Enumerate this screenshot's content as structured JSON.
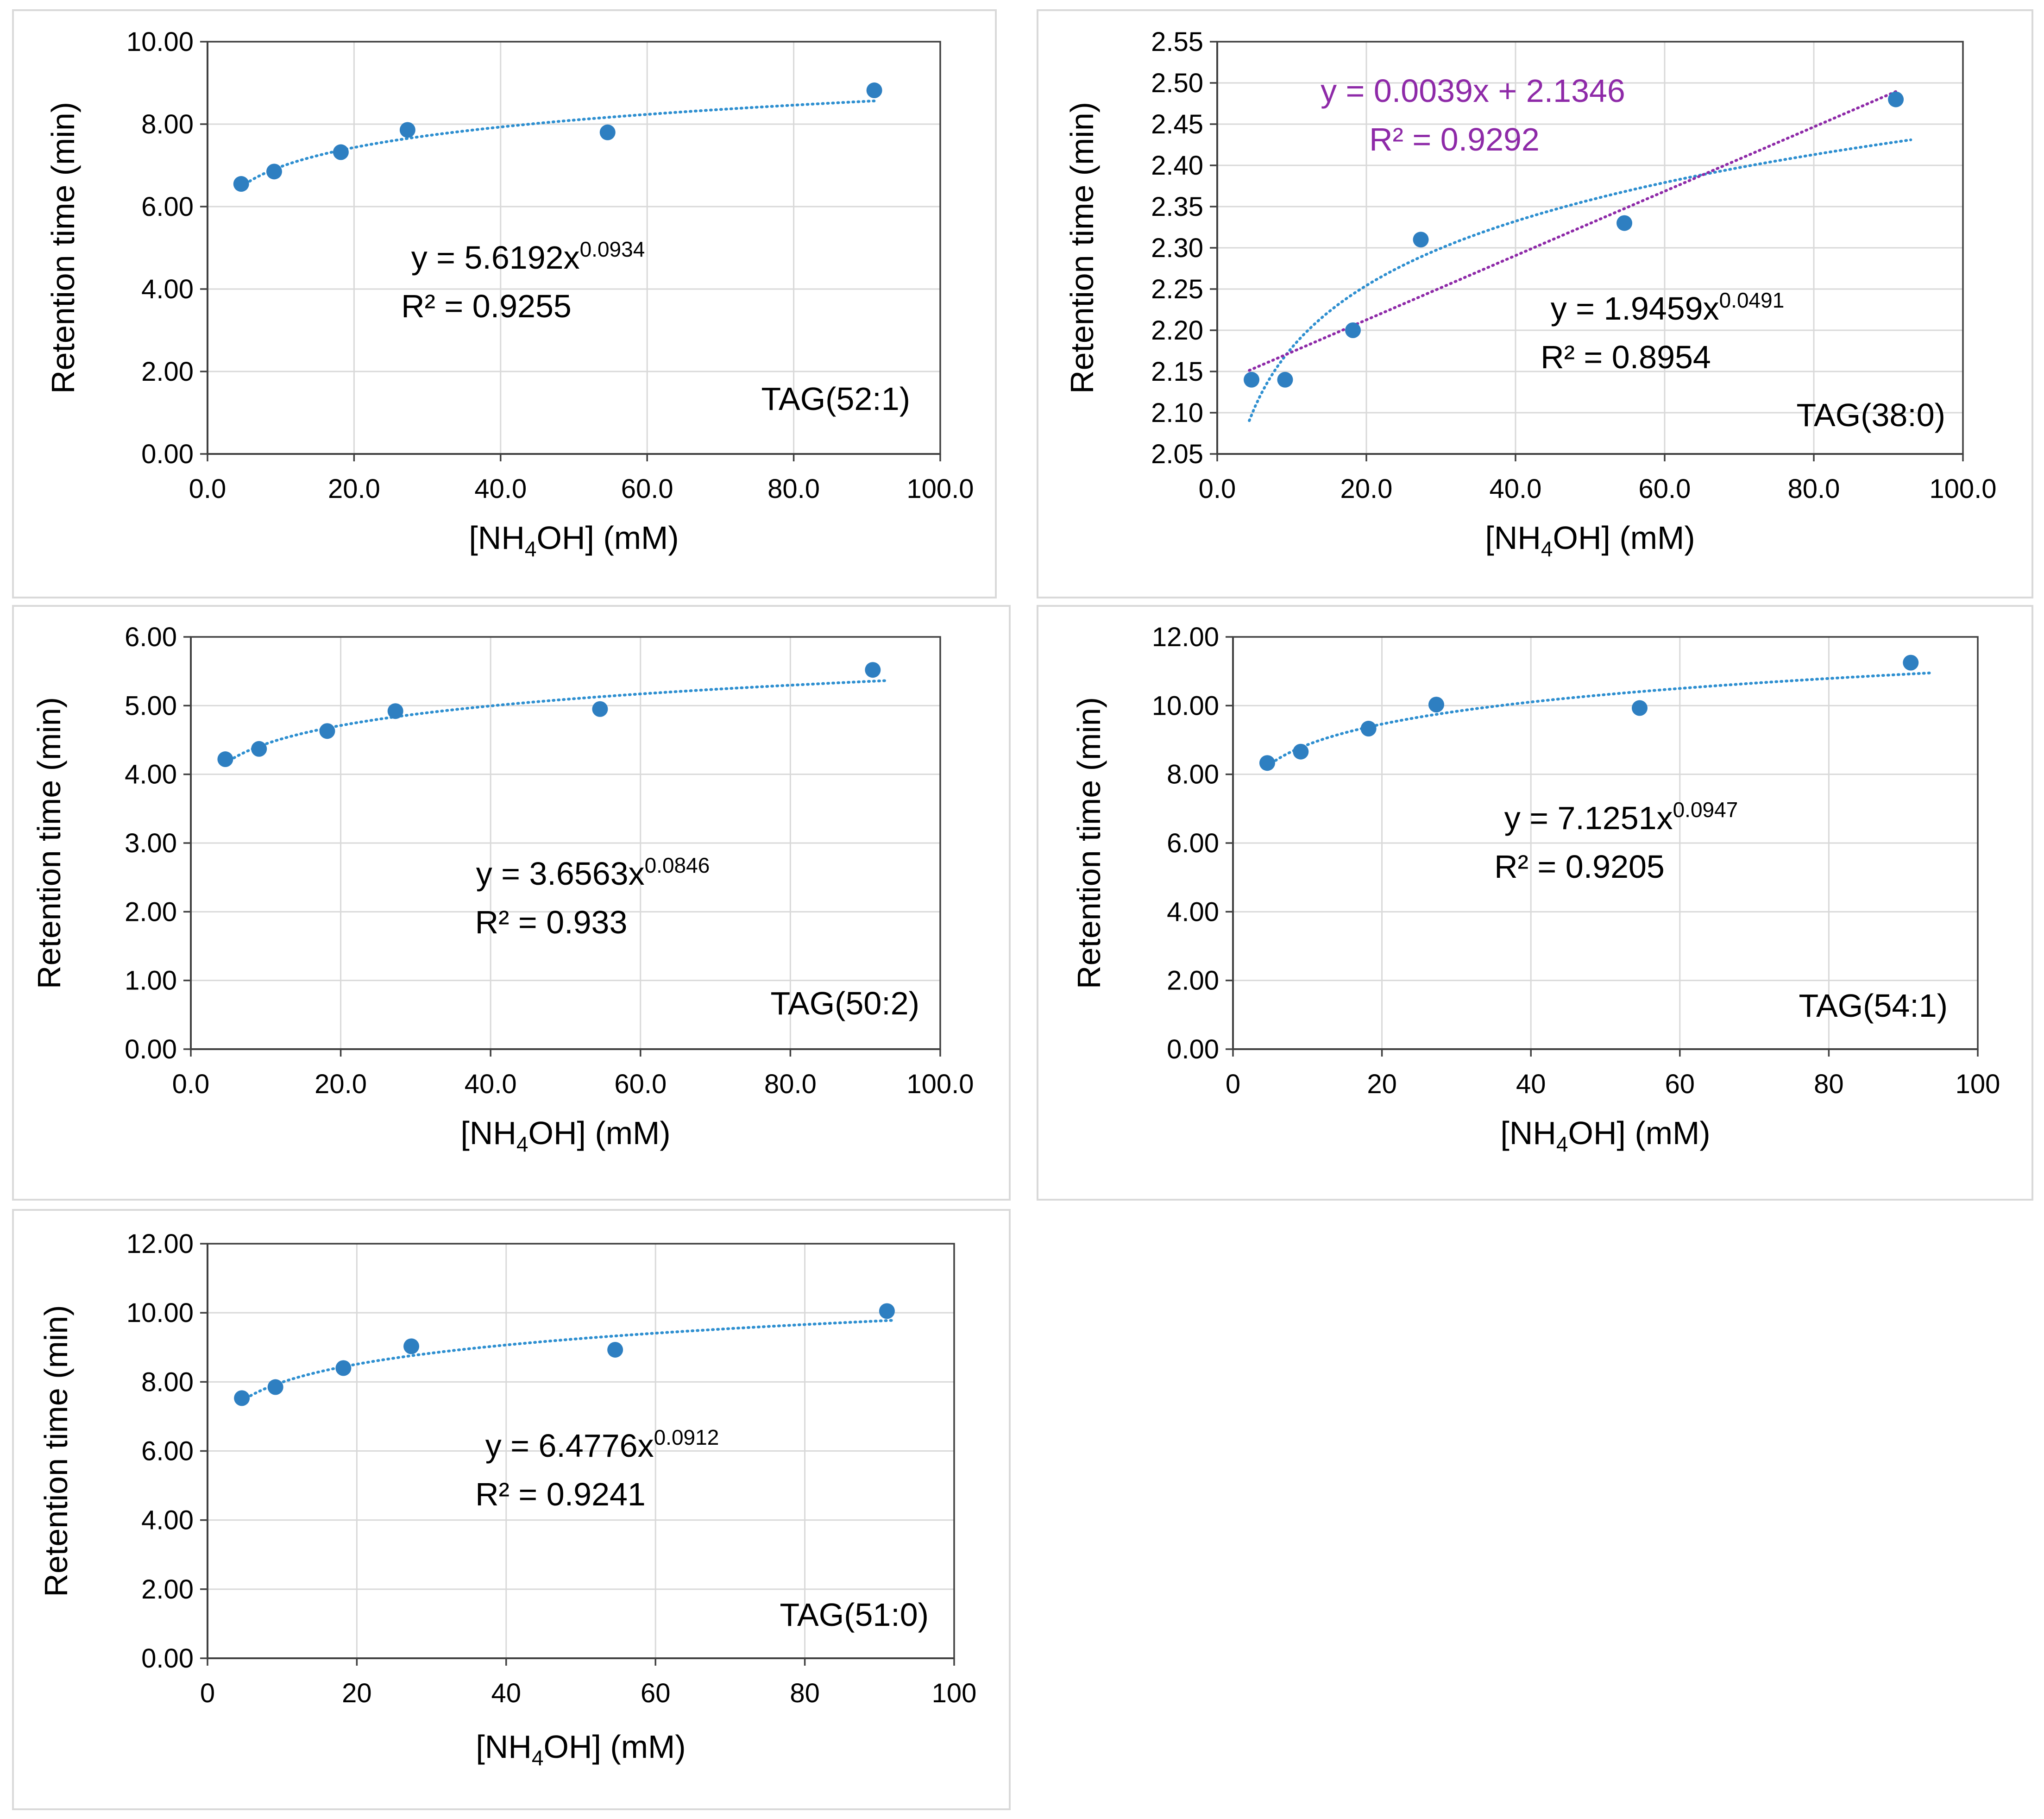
{
  "colors": {
    "marker": "#2e7fc1",
    "power_trend": "#2e8fd0",
    "linear_trend": "#8e2aa8",
    "gridline": "#d9d9d9",
    "axis": "#404040",
    "text": "#000000"
  },
  "chart_data": [
    {
      "type": "scatter",
      "label": "TAG(52:1)",
      "xlabel": "[NH4OH] (mM)",
      "ylabel": "Retention time (min)",
      "xlim": [
        0,
        100
      ],
      "ylim": [
        0,
        10
      ],
      "xticks": [
        0,
        20,
        40,
        60,
        80,
        100
      ],
      "xtick_labels": [
        "0.0",
        "20.0",
        "40.0",
        "60.0",
        "80.0",
        "100.0"
      ],
      "yticks": [
        0,
        2,
        4,
        6,
        8,
        10
      ],
      "ytick_labels": [
        "0.00",
        "2.00",
        "4.00",
        "6.00",
        "8.00",
        "10.00"
      ],
      "grid": true,
      "x": [
        4.6,
        9.1,
        18.2,
        27.3,
        54.6,
        91.0
      ],
      "y": [
        6.55,
        6.85,
        7.32,
        7.86,
        7.8,
        8.82
      ],
      "trendlines": [
        {
          "kind": "power",
          "a": 5.6192,
          "b": 0.0934,
          "x_range": [
            4.6,
            91.0
          ],
          "color_key": "power_trend",
          "eq_base": "y = 5.6192x",
          "eq_exp": "0.0934",
          "r2_label": "R² = 0.9255"
        }
      ]
    },
    {
      "type": "scatter",
      "label": "TAG(38:0)",
      "xlabel": "[NH4OH] (mM)",
      "ylabel": "Retention time (min)",
      "xlim": [
        0,
        100
      ],
      "ylim": [
        2.05,
        2.55
      ],
      "xticks": [
        0,
        20,
        40,
        60,
        80,
        100
      ],
      "xtick_labels": [
        "0.0",
        "20.0",
        "40.0",
        "60.0",
        "80.0",
        "100.0"
      ],
      "yticks": [
        2.05,
        2.1,
        2.15,
        2.2,
        2.25,
        2.3,
        2.35,
        2.4,
        2.45,
        2.5,
        2.55
      ],
      "ytick_labels": [
        "2.05",
        "2.10",
        "2.15",
        "2.20",
        "2.25",
        "2.30",
        "2.35",
        "2.40",
        "2.45",
        "2.50",
        "2.55"
      ],
      "grid": true,
      "x": [
        4.6,
        9.1,
        18.2,
        27.3,
        54.6,
        91.0
      ],
      "y": [
        2.14,
        2.14,
        2.2,
        2.31,
        2.33,
        2.48
      ],
      "trendlines": [
        {
          "kind": "power",
          "a": 1.9459,
          "b": 0.0491,
          "x_range": [
            4.3,
            93.0
          ],
          "color_key": "power_trend",
          "eq_base": "y = 1.9459x",
          "eq_exp": "0.0491",
          "r2_label": "R² = 0.8954"
        },
        {
          "kind": "linear",
          "m": 0.0039,
          "c": 2.1346,
          "x_range": [
            4.3,
            91.0
          ],
          "color_key": "linear_trend",
          "eq_base": "y = 0.0039x + 2.1346",
          "eq_exp": "",
          "r2_label": "R² = 0.9292"
        }
      ]
    },
    {
      "type": "scatter",
      "label": "TAG(50:2)",
      "xlabel": "[NH4OH] (mM)",
      "ylabel": "Retention time (min)",
      "xlim": [
        0,
        100
      ],
      "ylim": [
        0,
        6
      ],
      "xticks": [
        0,
        20,
        40,
        60,
        80,
        100
      ],
      "xtick_labels": [
        "0.0",
        "20.0",
        "40.0",
        "60.0",
        "80.0",
        "100.0"
      ],
      "yticks": [
        0,
        1,
        2,
        3,
        4,
        5,
        6
      ],
      "ytick_labels": [
        "0.00",
        "1.00",
        "2.00",
        "3.00",
        "4.00",
        "5.00",
        "6.00"
      ],
      "grid": true,
      "x": [
        4.6,
        9.1,
        18.2,
        27.3,
        54.6,
        91.0
      ],
      "y": [
        4.22,
        4.37,
        4.63,
        4.92,
        4.95,
        5.52
      ],
      "trendlines": [
        {
          "kind": "power",
          "a": 3.6563,
          "b": 0.0846,
          "x_range": [
            4.6,
            93.0
          ],
          "color_key": "power_trend",
          "eq_base": "y = 3.6563x",
          "eq_exp": "0.0846",
          "r2_label": "R² = 0.933"
        }
      ]
    },
    {
      "type": "scatter",
      "label": "TAG(54:1)",
      "xlabel": "[NH4OH] (mM)",
      "ylabel": "Retention time (min)",
      "xlim": [
        0,
        100
      ],
      "ylim": [
        0,
        12
      ],
      "xticks": [
        0,
        20,
        40,
        60,
        80,
        100
      ],
      "xtick_labels": [
        "0",
        "20",
        "40",
        "60",
        "80",
        "100"
      ],
      "yticks": [
        0,
        2,
        4,
        6,
        8,
        10,
        12
      ],
      "ytick_labels": [
        "0.00",
        "2.00",
        "4.00",
        "6.00",
        "8.00",
        "10.00",
        "12.00"
      ],
      "grid": true,
      "x": [
        4.6,
        9.1,
        18.2,
        27.3,
        54.6,
        91.0
      ],
      "y": [
        8.33,
        8.66,
        9.33,
        10.03,
        9.93,
        11.25
      ],
      "trendlines": [
        {
          "kind": "power",
          "a": 7.1251,
          "b": 0.0947,
          "x_range": [
            4.6,
            93.5
          ],
          "color_key": "power_trend",
          "eq_base": "y = 7.1251x",
          "eq_exp": "0.0947",
          "r2_label": "R² = 0.9205"
        }
      ]
    },
    {
      "type": "scatter",
      "label": "TAG(51:0)",
      "xlabel": "[NH4OH] (mM)",
      "ylabel": "Retention time (min)",
      "xlim": [
        0,
        100
      ],
      "ylim": [
        0,
        12
      ],
      "xticks": [
        0,
        20,
        40,
        60,
        80,
        100
      ],
      "xtick_labels": [
        "0",
        "20",
        "40",
        "60",
        "80",
        "100"
      ],
      "yticks": [
        0,
        2,
        4,
        6,
        8,
        10,
        12
      ],
      "ytick_labels": [
        "0.00",
        "2.00",
        "4.00",
        "6.00",
        "8.00",
        "10.00",
        "12.00"
      ],
      "grid": true,
      "x": [
        4.6,
        9.1,
        18.2,
        27.3,
        54.6,
        91.0
      ],
      "y": [
        7.53,
        7.85,
        8.4,
        9.03,
        8.93,
        10.05
      ],
      "trendlines": [
        {
          "kind": "power",
          "a": 6.4776,
          "b": 0.0912,
          "x_range": [
            4.6,
            92.0
          ],
          "color_key": "power_trend",
          "eq_base": "y = 6.4776x",
          "eq_exp": "0.0912",
          "r2_label": "R² = 0.9241"
        }
      ]
    }
  ]
}
